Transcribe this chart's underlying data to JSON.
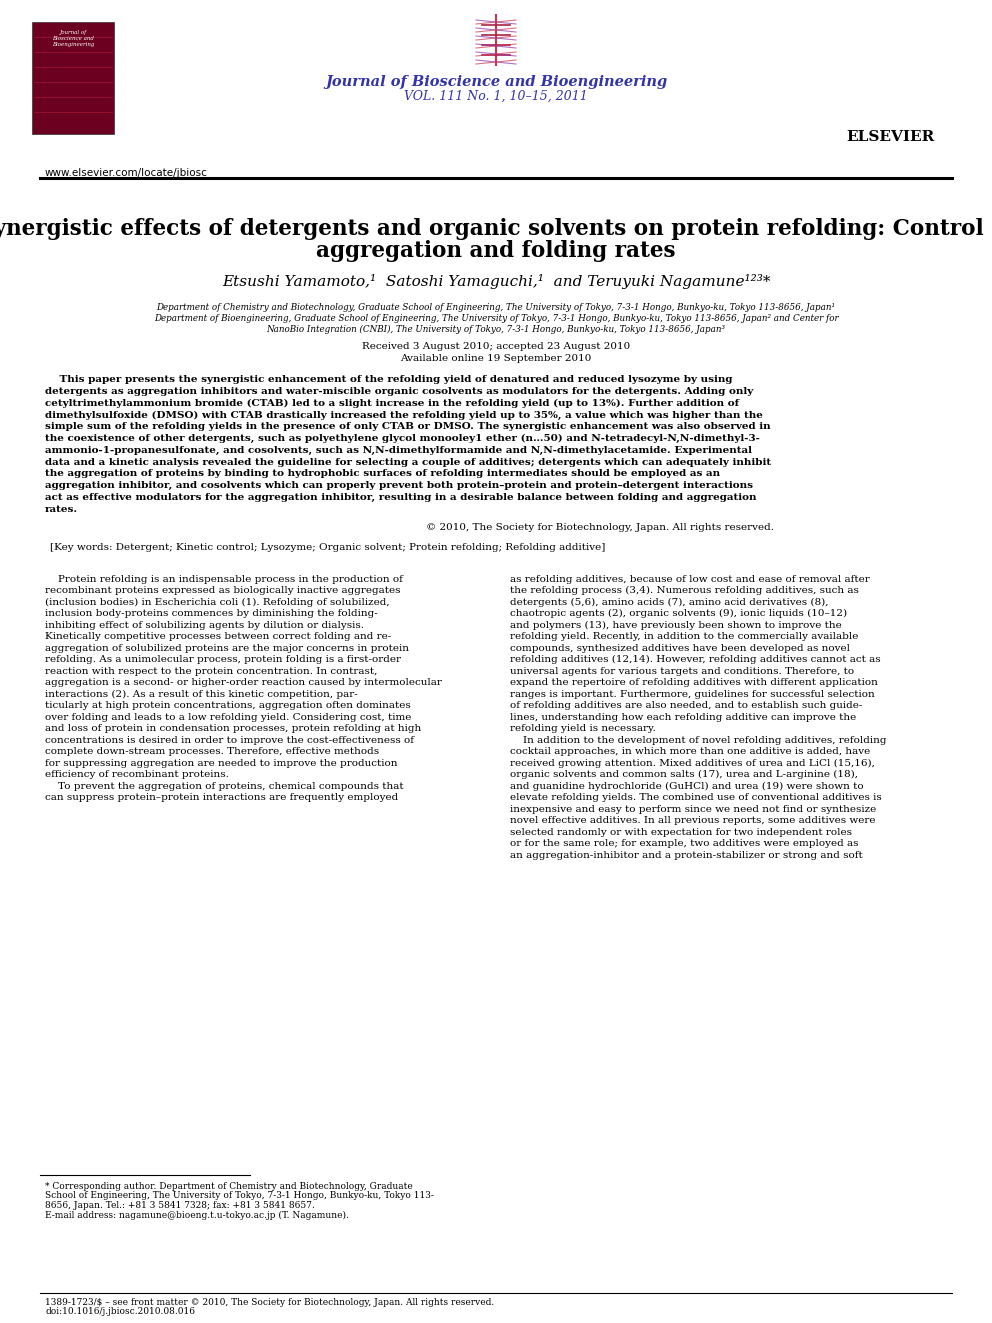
{
  "background_color": "#ffffff",
  "journal_name": "Journal of Bioscience and Bioengineering",
  "journal_vol": "VOL. 111 No. 1, 10–15, 2011",
  "journal_url": "www.elsevier.com/locate/jbiosc",
  "title_line1": "Synergistic effects of detergents and organic solvents on protein refolding: Control of",
  "title_line2": "aggregation and folding rates",
  "authors_line": "Etsushi Yamamoto,¹  Satoshi Yamaguchi,¹  and Teruyuki Nagamune¹²³*",
  "aff1": "Department of Chemistry and Biotechnology, Graduate School of Engineering, The University of Tokyo, 7-3-1 Hongo, Bunkyo-ku, Tokyo 113-8656, Japan¹",
  "aff2": "Department of Bioengineering, Graduate School of Engineering, The University of Tokyo, 7-3-1 Hongo, Bunkyo-ku, Tokyo 113-8656, Japan² and Center for",
  "aff3": "NanoBio Integration (CNBI), The University of Tokyo, 7-3-1 Hongo, Bunkyo-ku, Tokyo 113-8656, Japan³",
  "received": "Received 3 August 2010; accepted 23 August 2010",
  "available": "Available online 19 September 2010",
  "abstract_lines": [
    "    This paper presents the synergistic enhancement of the refolding yield of denatured and reduced lysozyme by using",
    "detergents as aggregation inhibitors and water-miscible organic cosolvents as modulators for the detergents. Adding only",
    "cetyltrimethylammonium bromide (CTAB) led to a slight increase in the refolding yield (up to 13%). Further addition of",
    "dimethylsulfoxide (DMSO) with CTAB drastically increased the refolding yield up to 35%, a value which was higher than the",
    "simple sum of the refolding yields in the presence of only CTAB or DMSO. The synergistic enhancement was also observed in",
    "the coexistence of other detergents, such as polyethylene glycol monooley1 ether (n…50) and N-tetradecyl-N,N-dimethyl-3-",
    "ammonio-1-propanesulfonate, and cosolvents, such as N,N-dimethylformamide and N,N-dimethylacetamide. Experimental",
    "data and a kinetic analysis revealed the guideline for selecting a couple of additives; detergents which can adequately inhibit",
    "the aggregation of proteins by binding to hydrophobic surfaces of refolding intermediates should be employed as an",
    "aggregation inhibitor, and cosolvents which can properly prevent both protein–protein and protein–detergent interactions",
    "act as effective modulators for the aggregation inhibitor, resulting in a desirable balance between folding and aggregation",
    "rates."
  ],
  "copyright": "© 2010, The Society for Biotechnology, Japan. All rights reserved.",
  "keywords": "[Key words: Detergent; Kinetic control; Lysozyme; Organic solvent; Protein refolding; Refolding additive]",
  "col1_lines": [
    "    Protein refolding is an indispensable process in the production of",
    "recombinant proteins expressed as biologically inactive aggregates",
    "(inclusion bodies) in Escherichia coli (1). Refolding of solubilized,",
    "inclusion body-proteins commences by diminishing the folding-",
    "inhibiting effect of solubilizing agents by dilution or dialysis.",
    "Kinetically competitive processes between correct folding and re-",
    "aggregation of solubilized proteins are the major concerns in protein",
    "refolding. As a unimolecular process, protein folding is a first-order",
    "reaction with respect to the protein concentration. In contrast,",
    "aggregation is a second- or higher-order reaction caused by intermolecular",
    "interactions (2). As a result of this kinetic competition, par-",
    "ticularly at high protein concentrations, aggregation often dominates",
    "over folding and leads to a low refolding yield. Considering cost, time",
    "and loss of protein in condensation processes, protein refolding at high",
    "concentrations is desired in order to improve the cost-effectiveness of",
    "complete down-stream processes. Therefore, effective methods",
    "for suppressing aggregation are needed to improve the production",
    "efficiency of recombinant proteins.",
    "    To prevent the aggregation of proteins, chemical compounds that",
    "can suppress protein–protein interactions are frequently employed"
  ],
  "col2_lines": [
    "as refolding additives, because of low cost and ease of removal after",
    "the refolding process (3,4). Numerous refolding additives, such as",
    "detergents (5,6), amino acids (7), amino acid derivatives (8),",
    "chaotropic agents (2), organic solvents (9), ionic liquids (10–12)",
    "and polymers (13), have previously been shown to improve the",
    "refolding yield. Recently, in addition to the commercially available",
    "compounds, synthesized additives have been developed as novel",
    "refolding additives (12,14). However, refolding additives cannot act as",
    "universal agents for various targets and conditions. Therefore, to",
    "expand the repertoire of refolding additives with different application",
    "ranges is important. Furthermore, guidelines for successful selection",
    "of refolding additives are also needed, and to establish such guide-",
    "lines, understanding how each refolding additive can improve the",
    "refolding yield is necessary.",
    "    In addition to the development of novel refolding additives, refolding",
    "cocktail approaches, in which more than one additive is added, have",
    "received growing attention. Mixed additives of urea and LiCl (15,16),",
    "organic solvents and common salts (17), urea and L-arginine (18),",
    "and guanidine hydrochloride (GuHCl) and urea (19) were shown to",
    "elevate refolding yields. The combined use of conventional additives is",
    "inexpensive and easy to perform since we need not find or synthesize",
    "novel effective additives. In all previous reports, some additives were",
    "selected randomly or with expectation for two independent roles",
    "or for the same role; for example, two additives were employed as",
    "an aggregation-inhibitor and a protein-stabilizer or strong and soft"
  ],
  "footnote_lines": [
    "* Corresponding author. Department of Chemistry and Biotechnology, Graduate",
    "School of Engineering, The University of Tokyo, 7-3-1 Hongo, Bunkyo-ku, Tokyo 113-",
    "8656, Japan. Tel.: +81 3 5841 7328; fax: +81 3 5841 8657.",
    "E-mail address: nagamune@bioeng.t.u-tokyo.ac.jp (T. Nagamune)."
  ],
  "footer1": "1389-1723/$ – see front matter © 2010, The Society for Biotechnology, Japan. All rights reserved.",
  "footer2": "doi:10.1016/j.jbiosc.2010.08.016",
  "journal_color": "#3333aa",
  "cover_color": "#6b0020",
  "cover_color2": "#3a0010"
}
